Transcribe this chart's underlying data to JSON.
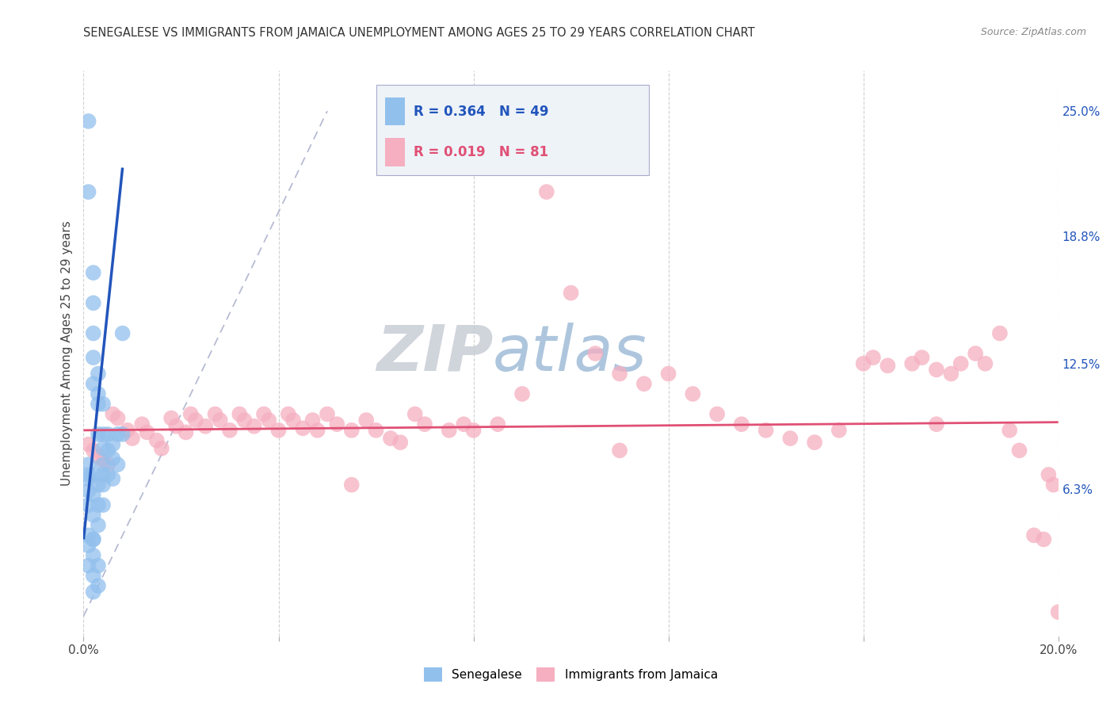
{
  "title": "SENEGALESE VS IMMIGRANTS FROM JAMAICA UNEMPLOYMENT AMONG AGES 25 TO 29 YEARS CORRELATION CHART",
  "source": "Source: ZipAtlas.com",
  "ylabel": "Unemployment Among Ages 25 to 29 years",
  "x_min": 0.0,
  "x_max": 0.2,
  "y_min": -0.01,
  "y_max": 0.27,
  "x_ticks": [
    0.0,
    0.04,
    0.08,
    0.12,
    0.16,
    0.2
  ],
  "x_tick_labels": [
    "0.0%",
    "",
    "",
    "",
    "",
    "20.0%"
  ],
  "y_ticks_right": [
    0.0,
    0.063,
    0.125,
    0.188,
    0.25
  ],
  "y_tick_labels_right": [
    "",
    "6.3%",
    "12.5%",
    "18.8%",
    "25.0%"
  ],
  "senegalese_color": "#92c0ed",
  "jamaica_color": "#f5afc0",
  "senegalese_line_color": "#2255bb",
  "jamaica_line_color": "#e05075",
  "diagonal_color": "#aab0cc",
  "watermark_zip_color": "#b8c8d8",
  "watermark_atlas_color": "#9ab5d0",
  "legend_box_color": "#eef3f8",
  "R_senegalese": 0.364,
  "N_senegalese": 49,
  "R_jamaica": 0.019,
  "N_jamaica": 81,
  "seng_trend_x0": 0.0,
  "seng_trend_y0": 0.038,
  "seng_trend_x1": 0.008,
  "seng_trend_y1": 0.222,
  "jam_trend_x0": 0.0,
  "jam_trend_y0": 0.092,
  "jam_trend_x1": 0.2,
  "jam_trend_y1": 0.096,
  "senegalese_x": [
    0.001,
    0.001,
    0.002,
    0.002,
    0.002,
    0.002,
    0.002,
    0.003,
    0.003,
    0.003,
    0.003,
    0.004,
    0.004,
    0.004,
    0.004,
    0.005,
    0.005,
    0.005,
    0.006,
    0.006,
    0.006,
    0.007,
    0.007,
    0.008,
    0.008,
    0.001,
    0.001,
    0.001,
    0.001,
    0.002,
    0.002,
    0.002,
    0.003,
    0.003,
    0.003,
    0.004,
    0.004,
    0.001,
    0.001,
    0.001,
    0.002,
    0.002,
    0.002,
    0.002,
    0.003,
    0.003,
    0.004,
    0.001,
    0.002
  ],
  "senegalese_y": [
    0.245,
    0.21,
    0.17,
    0.155,
    0.14,
    0.128,
    0.115,
    0.12,
    0.11,
    0.105,
    0.09,
    0.105,
    0.09,
    0.083,
    0.075,
    0.09,
    0.082,
    0.07,
    0.085,
    0.078,
    0.068,
    0.09,
    0.075,
    0.14,
    0.09,
    0.075,
    0.068,
    0.062,
    0.055,
    0.07,
    0.06,
    0.05,
    0.065,
    0.055,
    0.045,
    0.07,
    0.055,
    0.04,
    0.035,
    0.025,
    0.038,
    0.03,
    0.02,
    0.012,
    0.025,
    0.015,
    0.065,
    0.07,
    0.038
  ],
  "jamaica_x": [
    0.001,
    0.002,
    0.003,
    0.004,
    0.005,
    0.006,
    0.007,
    0.009,
    0.01,
    0.012,
    0.013,
    0.015,
    0.016,
    0.018,
    0.019,
    0.021,
    0.022,
    0.023,
    0.025,
    0.027,
    0.028,
    0.03,
    0.032,
    0.033,
    0.035,
    0.037,
    0.038,
    0.04,
    0.042,
    0.043,
    0.045,
    0.047,
    0.048,
    0.05,
    0.052,
    0.055,
    0.058,
    0.06,
    0.063,
    0.065,
    0.068,
    0.07,
    0.075,
    0.078,
    0.08,
    0.085,
    0.09,
    0.095,
    0.1,
    0.105,
    0.11,
    0.115,
    0.12,
    0.125,
    0.13,
    0.135,
    0.14,
    0.145,
    0.15,
    0.155,
    0.16,
    0.162,
    0.165,
    0.17,
    0.172,
    0.175,
    0.178,
    0.18,
    0.183,
    0.185,
    0.188,
    0.19,
    0.192,
    0.195,
    0.197,
    0.198,
    0.199,
    0.2,
    0.175,
    0.11,
    0.055
  ],
  "jamaica_y": [
    0.085,
    0.082,
    0.079,
    0.077,
    0.075,
    0.1,
    0.098,
    0.092,
    0.088,
    0.095,
    0.091,
    0.087,
    0.083,
    0.098,
    0.094,
    0.091,
    0.1,
    0.097,
    0.094,
    0.1,
    0.097,
    0.092,
    0.1,
    0.097,
    0.094,
    0.1,
    0.097,
    0.092,
    0.1,
    0.097,
    0.093,
    0.097,
    0.092,
    0.1,
    0.095,
    0.092,
    0.097,
    0.092,
    0.088,
    0.086,
    0.1,
    0.095,
    0.092,
    0.095,
    0.092,
    0.095,
    0.11,
    0.21,
    0.16,
    0.13,
    0.12,
    0.115,
    0.12,
    0.11,
    0.1,
    0.095,
    0.092,
    0.088,
    0.086,
    0.092,
    0.125,
    0.128,
    0.124,
    0.125,
    0.128,
    0.122,
    0.12,
    0.125,
    0.13,
    0.125,
    0.14,
    0.092,
    0.082,
    0.04,
    0.038,
    0.07,
    0.065,
    0.002,
    0.095,
    0.082,
    0.065
  ]
}
